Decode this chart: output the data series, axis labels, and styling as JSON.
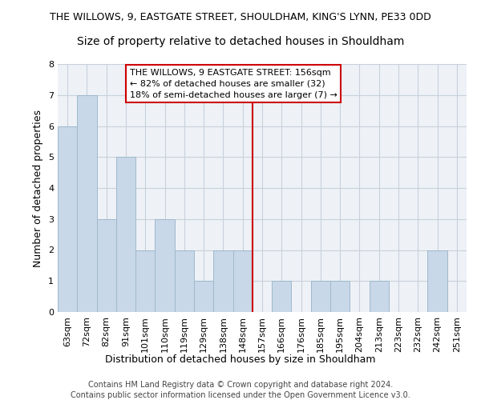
{
  "title": "THE WILLOWS, 9, EASTGATE STREET, SHOULDHAM, KING'S LYNN, PE33 0DD",
  "subtitle": "Size of property relative to detached houses in Shouldham",
  "xlabel_bottom": "Distribution of detached houses by size in Shouldham",
  "ylabel": "Number of detached properties",
  "categories": [
    "63sqm",
    "72sqm",
    "82sqm",
    "91sqm",
    "101sqm",
    "110sqm",
    "119sqm",
    "129sqm",
    "138sqm",
    "148sqm",
    "157sqm",
    "166sqm",
    "176sqm",
    "185sqm",
    "195sqm",
    "204sqm",
    "213sqm",
    "223sqm",
    "232sqm",
    "242sqm",
    "251sqm"
  ],
  "values": [
    6,
    7,
    3,
    5,
    2,
    3,
    2,
    1,
    2,
    2,
    0,
    1,
    0,
    1,
    1,
    0,
    1,
    0,
    0,
    2,
    0
  ],
  "bar_color": "#c8d8e8",
  "bar_edge_color": "#a0b8cc",
  "annotation_text": "THE WILLOWS, 9 EASTGATE STREET: 156sqm\n← 82% of detached houses are smaller (32)\n18% of semi-detached houses are larger (7) →",
  "vline_color": "#cc0000",
  "ylim": [
    0,
    8
  ],
  "yticks": [
    0,
    1,
    2,
    3,
    4,
    5,
    6,
    7,
    8
  ],
  "footer1": "Contains HM Land Registry data © Crown copyright and database right 2024.",
  "footer2": "Contains public sector information licensed under the Open Government Licence v3.0.",
  "bg_color": "#eef2f7",
  "grid_color": "#c8d0da",
  "title_fontsize": 9,
  "subtitle_fontsize": 10,
  "annotation_fontsize": 8,
  "ylabel_fontsize": 9,
  "tick_fontsize": 8,
  "footer_fontsize": 7,
  "xlabel_fontsize": 9
}
